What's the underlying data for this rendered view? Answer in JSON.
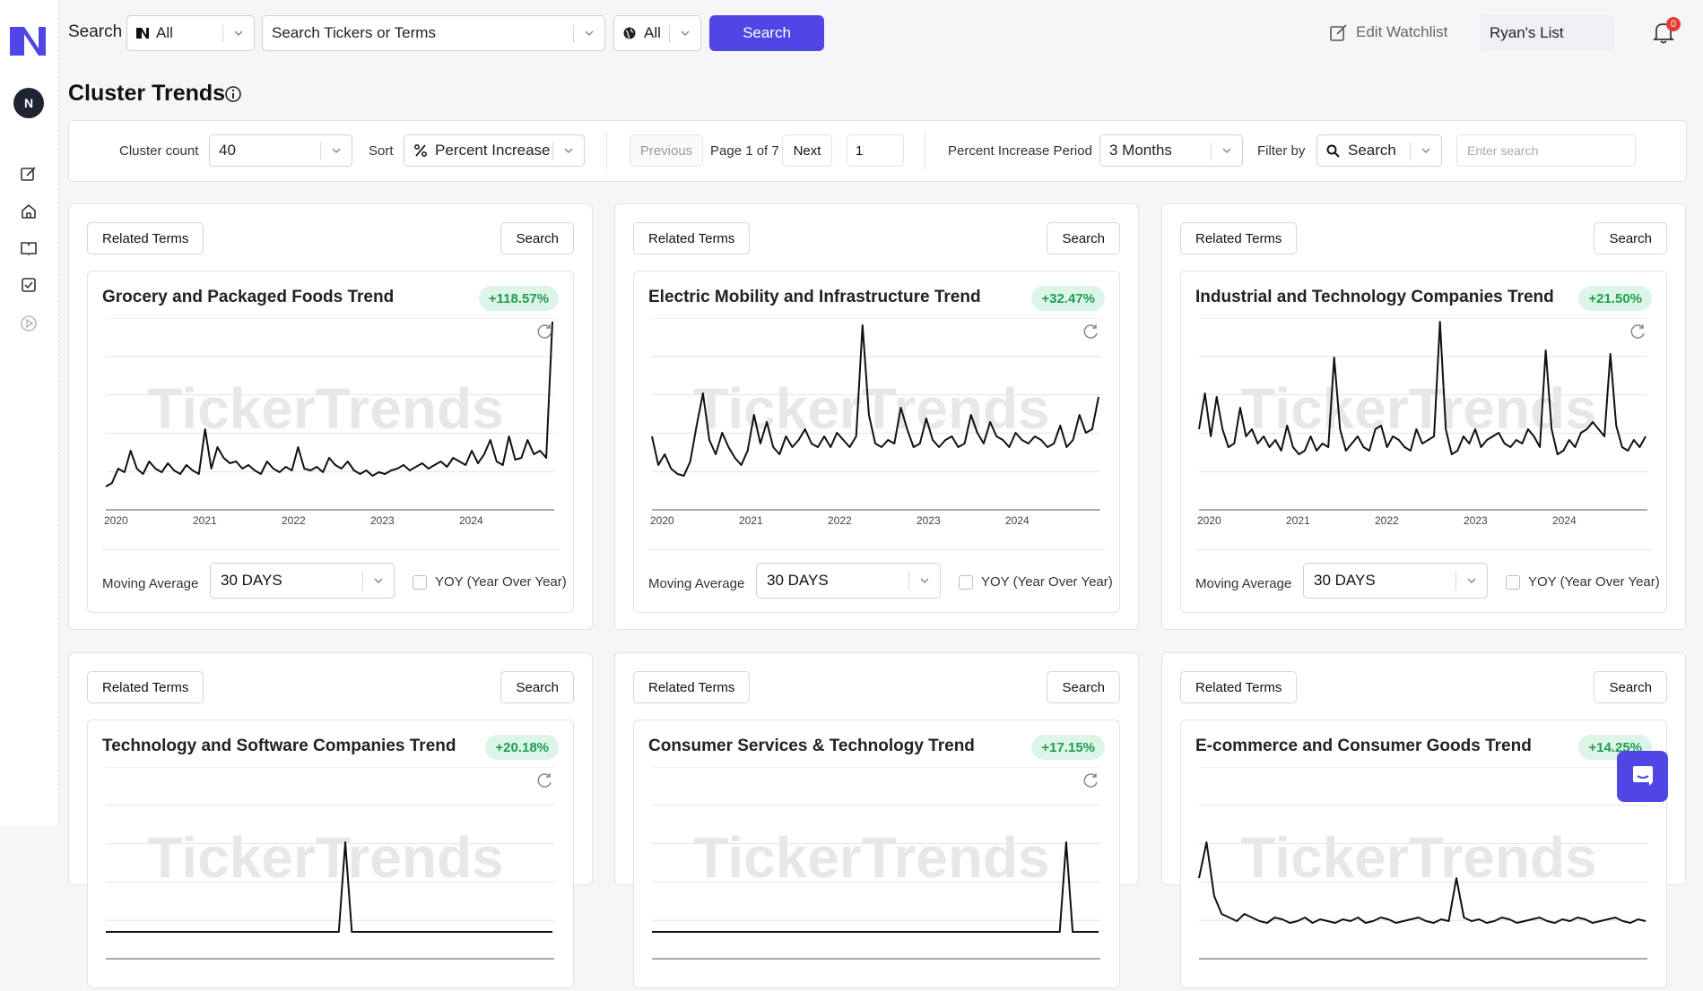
{
  "topbar": {
    "search_label": "Search",
    "type_select": "All",
    "search_placeholder": "Search Tickers or Terms",
    "region_select": "All",
    "search_button": "Search",
    "edit_watchlist": "Edit Watchlist",
    "watchlist_name": "Ryan's List",
    "notification_count": "0"
  },
  "sidebar": {
    "avatar": "N"
  },
  "page": {
    "title": "Cluster Trends"
  },
  "controls": {
    "cluster_count_label": "Cluster count",
    "cluster_count_value": "40",
    "sort_label": "Sort",
    "sort_value": "Percent Increase",
    "previous": "Previous",
    "page_info": "Page 1 of 7",
    "next": "Next",
    "page_input": "1",
    "period_label": "Percent Increase Period",
    "period_value": "3 Months",
    "filter_label": "Filter by",
    "filter_value": "Search",
    "filter_placeholder": "Enter search"
  },
  "card_common": {
    "related_terms": "Related Terms",
    "search": "Search",
    "moving_average_label": "Moving Average",
    "moving_average_value": "30 DAYS",
    "yoy_label": "YOY (Year Over Year)",
    "watermark": "TickerTrends"
  },
  "cards": [
    {
      "title": "Grocery and Packaged Foods Trend",
      "change": "+118.57%"
    },
    {
      "title": "Electric Mobility and Infrastructure Trend",
      "change": "+32.47%"
    },
    {
      "title": "Industrial and Technology Companies Trend",
      "change": "+21.50%"
    },
    {
      "title": "Technology and Software Companies Trend",
      "change": "+20.18%"
    },
    {
      "title": "Consumer Services & Technology Trend",
      "change": "+17.15%"
    },
    {
      "title": "E-commerce and Consumer Goods Trend",
      "change": "+14.25%"
    }
  ],
  "chart_data": [
    {
      "type": "line",
      "x_tick_labels": [
        "2020",
        "2021",
        "2022",
        "2023",
        "2024"
      ],
      "series": [
        {
          "values": [
            8,
            10,
            18,
            16,
            28,
            18,
            15,
            22,
            18,
            16,
            21,
            17,
            15,
            20,
            17,
            15,
            40,
            18,
            30,
            24,
            21,
            22,
            18,
            20,
            17,
            15,
            22,
            18,
            16,
            19,
            17,
            30,
            18,
            17,
            19,
            16,
            24,
            20,
            18,
            22,
            17,
            15,
            17,
            14,
            16,
            15,
            17,
            18,
            20,
            17,
            19,
            21,
            18,
            20,
            22,
            19,
            24,
            22,
            20,
            28,
            21,
            26,
            34,
            22,
            20,
            36,
            23,
            24,
            34,
            26,
            28,
            24,
            100
          ]
        }
      ]
    },
    {
      "type": "line",
      "x_tick_labels": [
        "2020",
        "2021",
        "2022",
        "2023",
        "2024"
      ],
      "series": [
        {
          "values": [
            36,
            20,
            26,
            18,
            15,
            14,
            22,
            42,
            60,
            34,
            26,
            38,
            30,
            24,
            20,
            28,
            48,
            32,
            44,
            30,
            26,
            36,
            30,
            34,
            40,
            32,
            30,
            36,
            30,
            38,
            34,
            30,
            36,
            98,
            48,
            32,
            30,
            34,
            32,
            52,
            40,
            30,
            32,
            46,
            34,
            30,
            34,
            36,
            30,
            32,
            48,
            38,
            32,
            44,
            36,
            34,
            30,
            38,
            34,
            32,
            36,
            34,
            30,
            32,
            42,
            30,
            34,
            48,
            38,
            40,
            58
          ]
        }
      ]
    },
    {
      "type": "line",
      "x_tick_labels": [
        "2020",
        "2021",
        "2022",
        "2023",
        "2024"
      ],
      "series": [
        {
          "values": [
            40,
            60,
            36,
            58,
            40,
            30,
            32,
            52,
            36,
            40,
            32,
            36,
            30,
            34,
            28,
            42,
            30,
            26,
            28,
            36,
            28,
            32,
            30,
            80,
            40,
            28,
            32,
            36,
            30,
            28,
            40,
            42,
            30,
            36,
            34,
            30,
            28,
            40,
            32,
            34,
            36,
            100,
            40,
            26,
            28,
            36,
            32,
            40,
            30,
            34,
            36,
            38,
            32,
            30,
            34,
            32,
            40,
            36,
            30,
            84,
            40,
            26,
            28,
            34,
            30,
            38,
            40,
            44,
            40,
            36,
            82,
            42,
            30,
            28,
            34,
            30,
            36
          ]
        }
      ]
    },
    {
      "type": "line",
      "x_tick_labels": [],
      "series": [
        {
          "values": [
            10,
            10,
            10,
            10,
            10,
            10,
            10,
            10,
            10,
            10,
            10,
            10,
            10,
            10,
            10,
            10,
            10,
            10,
            10,
            10,
            10,
            10,
            10,
            10,
            10,
            10,
            10,
            10,
            10,
            10,
            10,
            10,
            10,
            10,
            10,
            10,
            10,
            60,
            10,
            10,
            10,
            10,
            10,
            10,
            10,
            10,
            10,
            10,
            10,
            10,
            10,
            10,
            10,
            10,
            10,
            10,
            10,
            10,
            10,
            10,
            10,
            10,
            10,
            10,
            10,
            10,
            10,
            10,
            10,
            10
          ]
        }
      ]
    },
    {
      "type": "line",
      "x_tick_labels": [],
      "series": [
        {
          "values": [
            10,
            10,
            10,
            10,
            10,
            10,
            10,
            10,
            10,
            10,
            10,
            10,
            10,
            10,
            10,
            10,
            10,
            10,
            10,
            10,
            10,
            10,
            10,
            10,
            10,
            10,
            10,
            10,
            10,
            10,
            10,
            10,
            10,
            10,
            10,
            10,
            10,
            10,
            10,
            10,
            10,
            10,
            10,
            10,
            10,
            10,
            10,
            10,
            10,
            10,
            10,
            10,
            10,
            10,
            10,
            10,
            10,
            10,
            10,
            10,
            10,
            10,
            10,
            10,
            60,
            10,
            10,
            10,
            10,
            10
          ]
        }
      ]
    },
    {
      "type": "line",
      "x_tick_labels": [],
      "series": [
        {
          "values": [
            40,
            60,
            30,
            20,
            18,
            16,
            20,
            18,
            16,
            15,
            18,
            17,
            15,
            16,
            18,
            15,
            17,
            16,
            15,
            17,
            16,
            18,
            15,
            16,
            18,
            17,
            15,
            16,
            17,
            18,
            16,
            15,
            17,
            16,
            40,
            18,
            16,
            17,
            15,
            16,
            18,
            17,
            15,
            16,
            17,
            18,
            16,
            15,
            17,
            16,
            18,
            17,
            15,
            16,
            17,
            18,
            16,
            15,
            17,
            16
          ]
        }
      ]
    }
  ]
}
